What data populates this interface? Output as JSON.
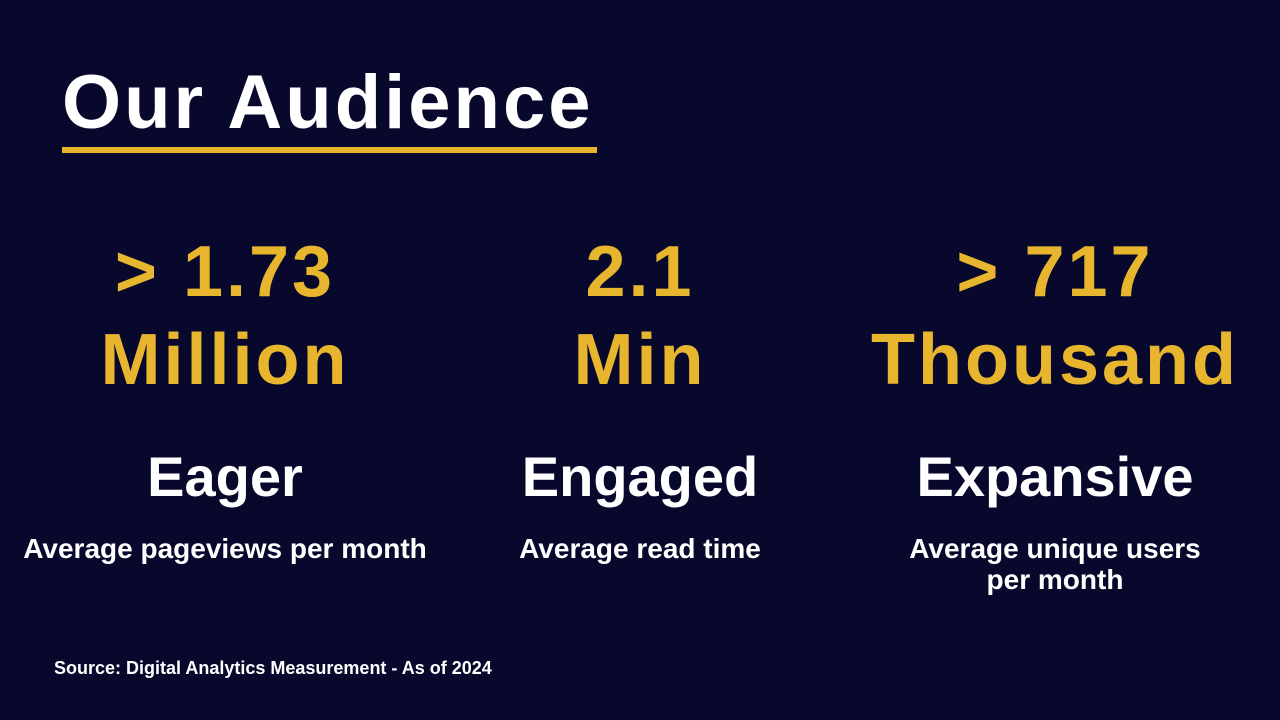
{
  "slide": {
    "title": "Our Audience",
    "colors": {
      "background": "#08082C",
      "accent_gold": "#E7B52E",
      "text": "#FFFFFF"
    },
    "stats": [
      {
        "value": "> 1.73\nMillion",
        "label": "Eager",
        "description": "Average pageviews per month"
      },
      {
        "value": "2.1\nMin",
        "label": "Engaged",
        "description": "Average read time"
      },
      {
        "value": "> 717\nThousand",
        "label": "Expansive",
        "description": "Average unique users\nper month"
      }
    ],
    "source": "Source: Digital Analytics Measurement - As of 2024"
  }
}
